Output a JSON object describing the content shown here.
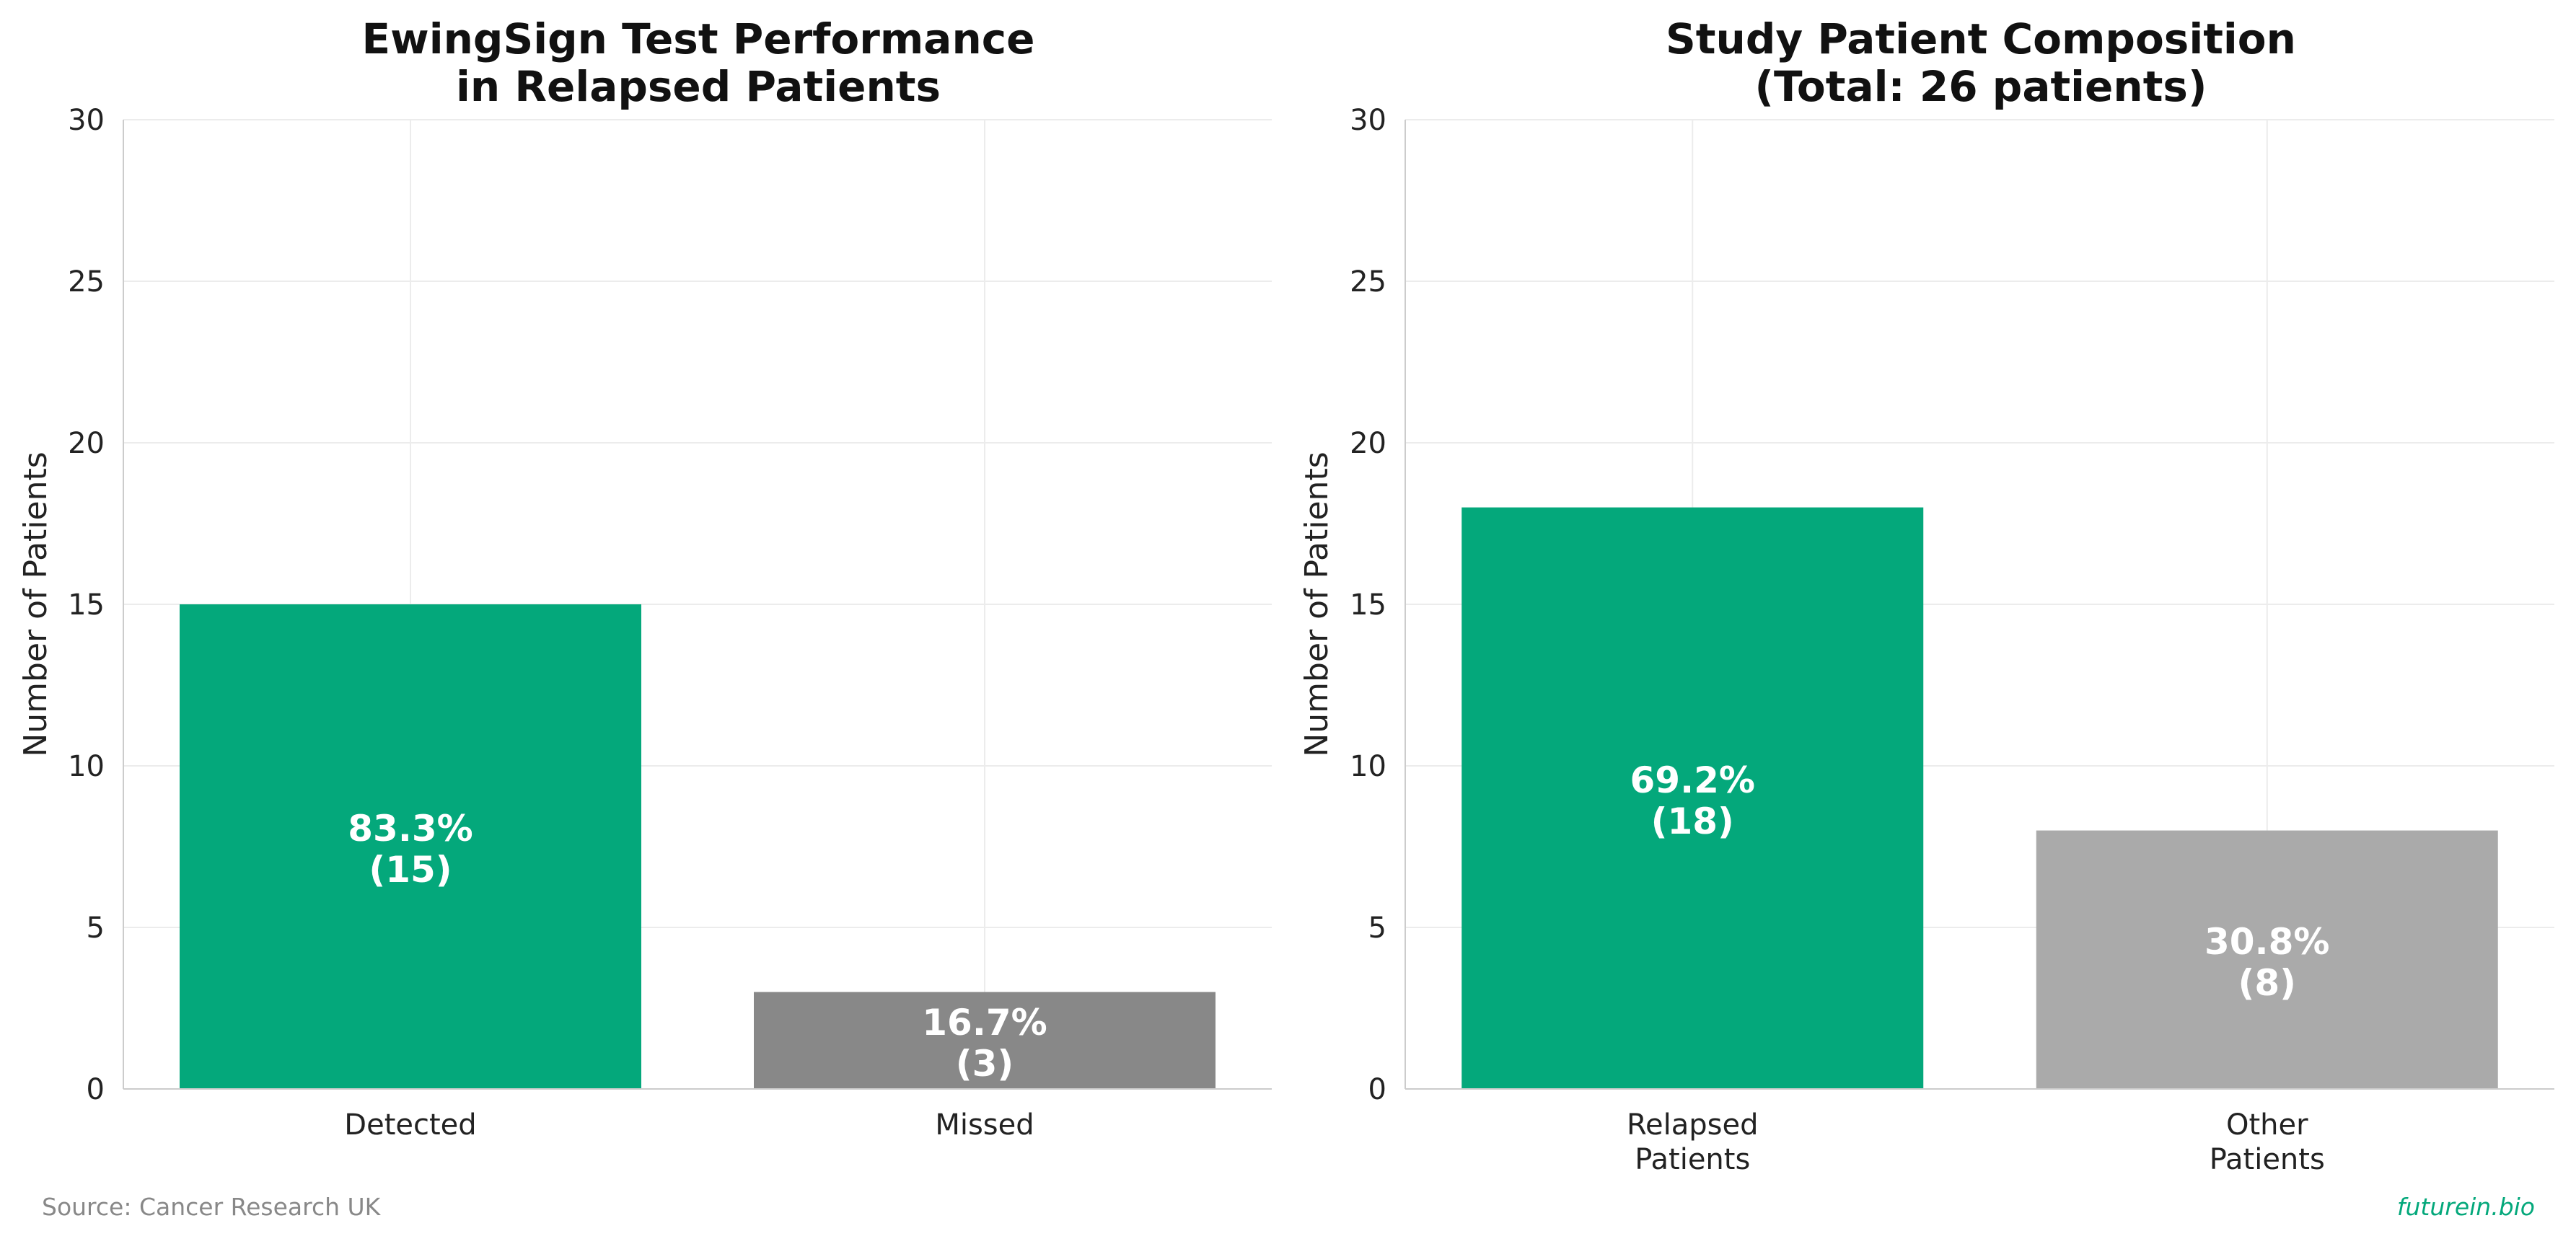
{
  "chart_data": [
    {
      "type": "bar",
      "title": [
        "EwingSign Test Performance",
        "in Relapsed Patients"
      ],
      "xlabel": "",
      "ylabel": "Number of Patients",
      "ylim": [
        0,
        30
      ],
      "yticks": [
        0,
        5,
        10,
        15,
        20,
        25,
        30
      ],
      "categories": [
        [
          "Detected"
        ],
        [
          "Missed"
        ]
      ],
      "values": [
        15,
        3
      ],
      "colors": [
        "#04a87b",
        "#888888"
      ],
      "data_labels": [
        [
          "83.3%",
          "(15)"
        ],
        [
          "16.7%",
          "(3)"
        ]
      ],
      "grid": true
    },
    {
      "type": "bar",
      "title": [
        "Study Patient Composition",
        "(Total: 26 patients)"
      ],
      "xlabel": "",
      "ylabel": "Number of Patients",
      "ylim": [
        0,
        30
      ],
      "yticks": [
        0,
        5,
        10,
        15,
        20,
        25,
        30
      ],
      "categories": [
        [
          "Relapsed",
          "Patients"
        ],
        [
          "Other",
          "Patients"
        ]
      ],
      "values": [
        18,
        8
      ],
      "colors": [
        "#04a87b",
        "#aaaaaa"
      ],
      "data_labels": [
        [
          "69.2%",
          "(18)"
        ],
        [
          "30.8%",
          "(8)"
        ]
      ],
      "grid": true
    }
  ],
  "footer": {
    "source": "Source: Cancer Research UK",
    "brand": "futurein.bio",
    "brand_color": "#04a87b"
  }
}
